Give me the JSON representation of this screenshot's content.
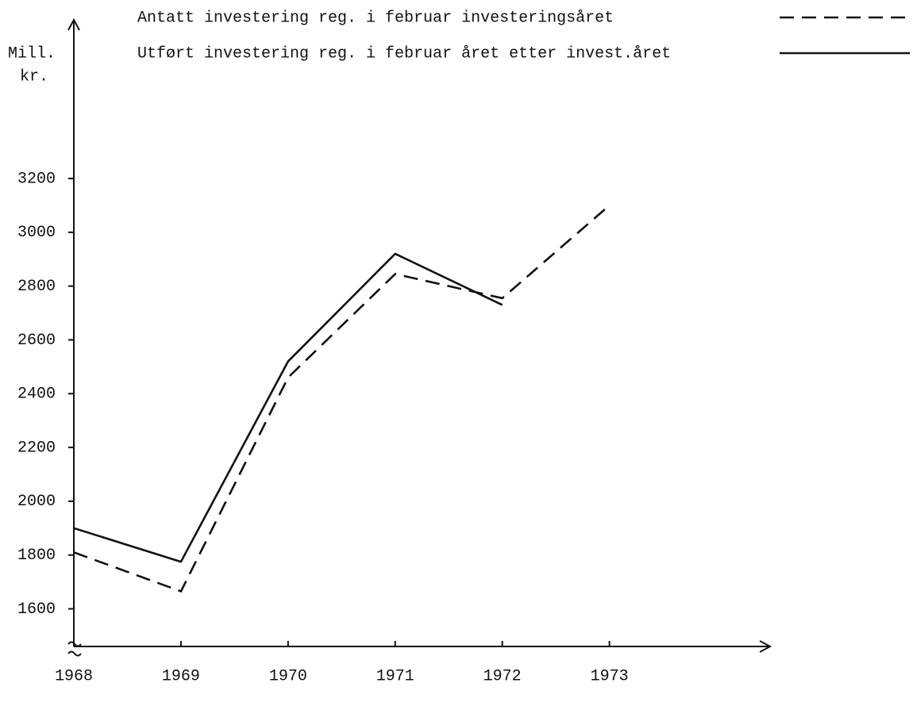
{
  "chart_data": {
    "type": "line",
    "ylabel": [
      "Mill.",
      "kr."
    ],
    "x": [
      1968,
      1969,
      1970,
      1971,
      1972,
      1973
    ],
    "series": [
      {
        "name": "Antatt investering reg. i februar investeringsåret",
        "color": "#111111",
        "dashed": true,
        "values": [
          1810,
          1665,
          2460,
          2845,
          2755,
          3100
        ]
      },
      {
        "name": "Utført investering reg. i februar året etter invest.året",
        "color": "#111111",
        "dashed": false,
        "values": [
          1900,
          1775,
          2520,
          2920,
          2730,
          null
        ]
      }
    ],
    "xlim": [
      1968,
      1974.5
    ],
    "xticks": [
      1968,
      1969,
      1970,
      1971,
      1972,
      1973
    ],
    "ylim": [
      1460,
      3790
    ],
    "yticks": [
      1600,
      1800,
      2000,
      2200,
      2400,
      2600,
      2800,
      3000,
      3200
    ],
    "grid": false
  }
}
